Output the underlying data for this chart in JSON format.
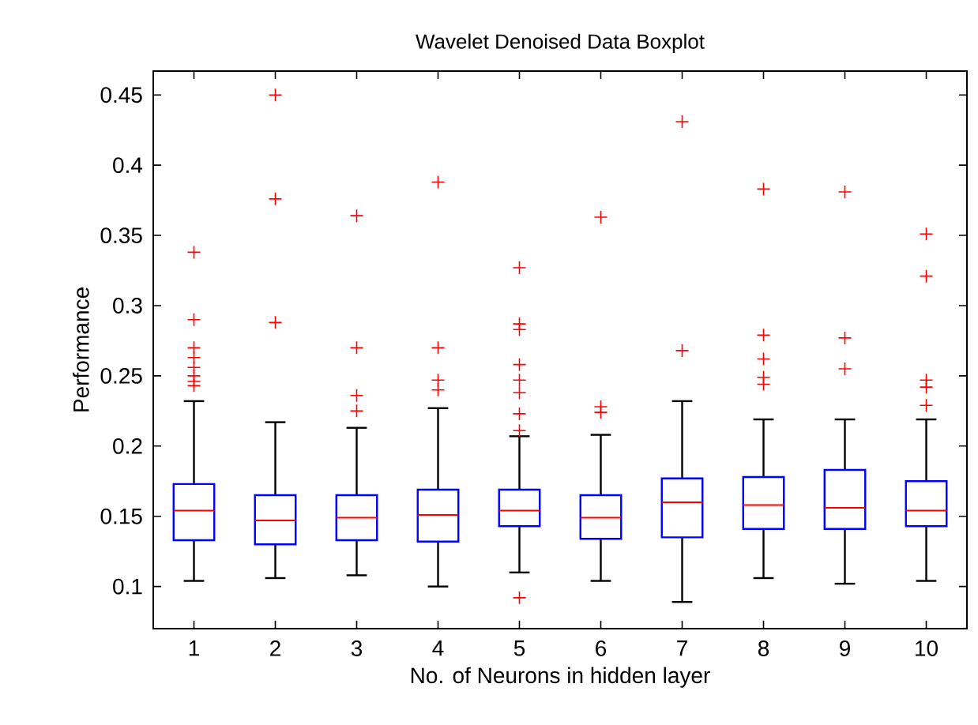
{
  "chart_data": {
    "type": "box",
    "title": "Wavelet Denoised Data Boxplot",
    "xlabel": "No. of Neurons in hidden layer",
    "ylabel": "Performance",
    "categories": [
      "1",
      "2",
      "3",
      "4",
      "5",
      "6",
      "7",
      "8",
      "9",
      "10"
    ],
    "color": "#0000ff",
    "boxes": [
      {
        "low": 0.104,
        "q1": 0.133,
        "median": 0.154,
        "q3": 0.173,
        "high": 0.232,
        "outliers": [
          0.338,
          0.29,
          0.27,
          0.263,
          0.256,
          0.25,
          0.246,
          0.243
        ]
      },
      {
        "low": 0.106,
        "q1": 0.13,
        "median": 0.147,
        "q3": 0.165,
        "high": 0.217,
        "outliers": [
          0.45,
          0.376,
          0.288
        ]
      },
      {
        "low": 0.108,
        "q1": 0.133,
        "median": 0.149,
        "q3": 0.165,
        "high": 0.213,
        "outliers": [
          0.364,
          0.27,
          0.236,
          0.225
        ]
      },
      {
        "low": 0.1,
        "q1": 0.132,
        "median": 0.151,
        "q3": 0.169,
        "high": 0.227,
        "outliers": [
          0.388,
          0.27,
          0.247,
          0.24
        ]
      },
      {
        "low": 0.11,
        "q1": 0.143,
        "median": 0.154,
        "q3": 0.169,
        "high": 0.207,
        "outliers": [
          0.327,
          0.287,
          0.283,
          0.258,
          0.247,
          0.238,
          0.223,
          0.211,
          0.092
        ]
      },
      {
        "low": 0.104,
        "q1": 0.134,
        "median": 0.149,
        "q3": 0.165,
        "high": 0.208,
        "outliers": [
          0.363,
          0.228,
          0.224
        ]
      },
      {
        "low": 0.089,
        "q1": 0.135,
        "median": 0.16,
        "q3": 0.177,
        "high": 0.232,
        "outliers": [
          0.431,
          0.268
        ]
      },
      {
        "low": 0.106,
        "q1": 0.141,
        "median": 0.158,
        "q3": 0.178,
        "high": 0.219,
        "outliers": [
          0.383,
          0.279,
          0.262,
          0.249,
          0.244
        ]
      },
      {
        "low": 0.102,
        "q1": 0.141,
        "median": 0.156,
        "q3": 0.183,
        "high": 0.219,
        "outliers": [
          0.381,
          0.277,
          0.255
        ]
      },
      {
        "low": 0.104,
        "q1": 0.143,
        "median": 0.154,
        "q3": 0.175,
        "high": 0.219,
        "outliers": [
          0.351,
          0.321,
          0.247,
          0.242,
          0.229
        ]
      }
    ],
    "ylim": [
      0.07,
      0.467
    ],
    "yticks": [
      0.1,
      0.15,
      0.2,
      0.25,
      0.3,
      0.35,
      0.4,
      0.45
    ],
    "grid": false
  }
}
